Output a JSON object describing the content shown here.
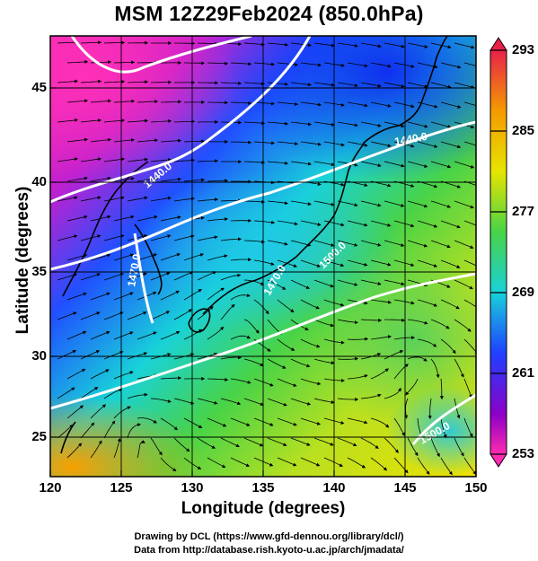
{
  "title": "MSM 12Z29Feb2024 (850.0hPa)",
  "axes": {
    "xlabel": "Longitude (degrees)",
    "ylabel": "Latitude  (degrees)",
    "xticks": [
      "120",
      "125",
      "130",
      "135",
      "140",
      "145",
      "150"
    ],
    "yticks": [
      "25",
      "30",
      "35",
      "40",
      "45"
    ]
  },
  "colorbar": {
    "ticks": [
      "293",
      "285",
      "277",
      "269",
      "261",
      "253"
    ],
    "colors": [
      "#e8204a",
      "#f59a00",
      "#e6e400",
      "#48d348",
      "#18d2d8",
      "#1e40ff",
      "#8c00c8",
      "#ff2bb0"
    ]
  },
  "contour_labels": [
    "1440.0",
    "1440.0",
    "1470.0",
    "1470.0",
    "1500.0",
    "1500.0"
  ],
  "credits": {
    "line1": "Drawing by DCL (https://www.gfd-dennou.org/library/dcl/)",
    "line2": "Data from http://database.rish.kyoto-u.ac.jp/arch/jmadata/"
  },
  "chart_data": {
    "type": "map",
    "title": "MSM 12Z29Feb2024 (850.0hPa)",
    "xlabel": "Longitude (degrees)",
    "ylabel": "Latitude  (degrees)",
    "xlim": [
      120,
      150
    ],
    "ylim": [
      22.4,
      47.6
    ],
    "x_ticks": [
      120,
      125,
      130,
      135,
      140,
      145,
      150
    ],
    "y_ticks": [
      25,
      30,
      35,
      40,
      45
    ],
    "colorbar_range": [
      253,
      293
    ],
    "colorbar_ticks": [
      293,
      285,
      277,
      269,
      261,
      253
    ],
    "grid": true,
    "contour_labels": [
      1440.0,
      1470.0,
      1500.0
    ]
  }
}
